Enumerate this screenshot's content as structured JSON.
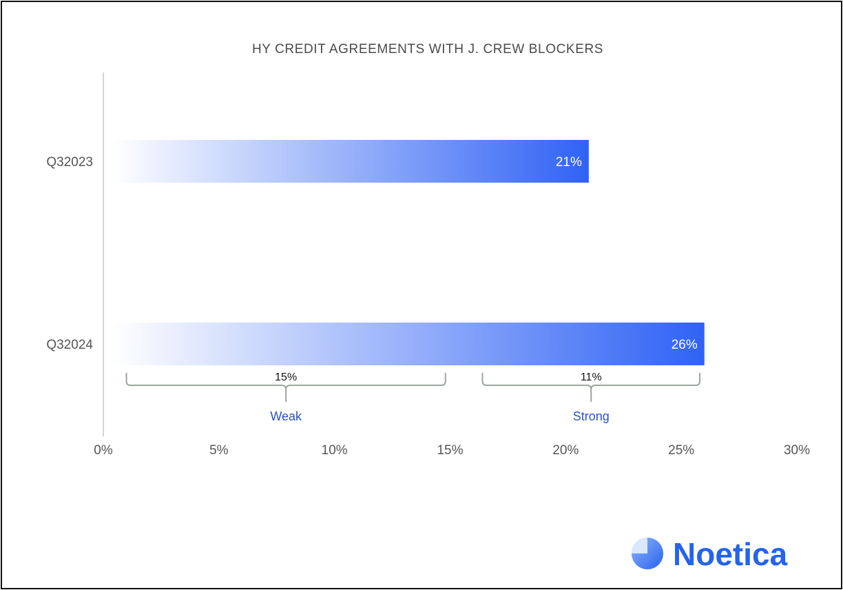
{
  "colors": {
    "bar": "#2f62f5",
    "axis_line": "#d4d4d4",
    "bracket": "#9aa69b",
    "bracket_label": "#2a52be",
    "brand": "#2563eb"
  },
  "chart_data": {
    "type": "bar",
    "orientation": "horizontal",
    "title": "HY CREDIT AGREEMENTS WITH J. CREW BLOCKERS",
    "categories": [
      "Q32023",
      "Q32024"
    ],
    "values": [
      21,
      26
    ],
    "value_labels": [
      "21%",
      "26%"
    ],
    "xlim": [
      0,
      30
    ],
    "x_ticks": [
      0,
      5,
      10,
      15,
      20,
      25,
      30
    ],
    "x_tick_labels": [
      "0%",
      "5%",
      "10%",
      "15%",
      "20%",
      "25%",
      "30%"
    ],
    "grid": false,
    "breakdown": {
      "category": "Q32024",
      "segments": [
        {
          "label": "Weak",
          "value": 15,
          "value_label": "15%",
          "range": [
            1,
            14.8
          ]
        },
        {
          "label": "Strong",
          "value": 11,
          "value_label": "11%",
          "range": [
            16.4,
            25.8
          ]
        }
      ]
    }
  },
  "brand": {
    "name": "Noetica",
    "icon": "noetica-logo-icon"
  }
}
